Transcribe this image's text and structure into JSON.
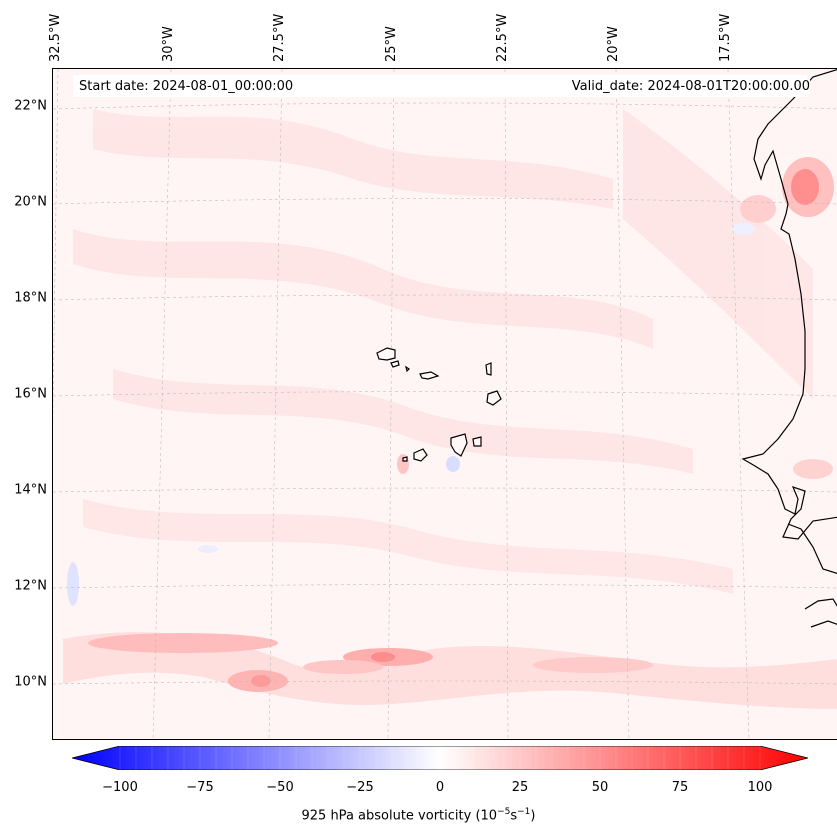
{
  "map": {
    "start_date_text": "Start date: 2024-08-01_00:00:00",
    "valid_date_text": "Valid_date: 2024-08-01T20:00:00.00",
    "lat_labels": [
      "22°N",
      "20°N",
      "18°N",
      "16°N",
      "14°N",
      "12°N",
      "10°N"
    ],
    "lon_labels": [
      "32.5°W",
      "30°W",
      "27.5°W",
      "25°W",
      "22.5°W",
      "20°W",
      "17.5°W"
    ],
    "region": "Cape Verde Islands and West African coast",
    "colormap": "bwr"
  },
  "colorbar": {
    "ticks": [
      "−100",
      "−75",
      "−50",
      "−25",
      "0",
      "25",
      "50",
      "75",
      "100"
    ],
    "min": -100,
    "max": 100,
    "label_main": "925 hPa absolute vorticity (10",
    "label_exp1": "−5",
    "label_mid": "s",
    "label_exp2": "−1",
    "label_close": ")",
    "colors": {
      "negative": "#0000ff",
      "zero": "#ffffff",
      "positive": "#ff0000"
    }
  }
}
